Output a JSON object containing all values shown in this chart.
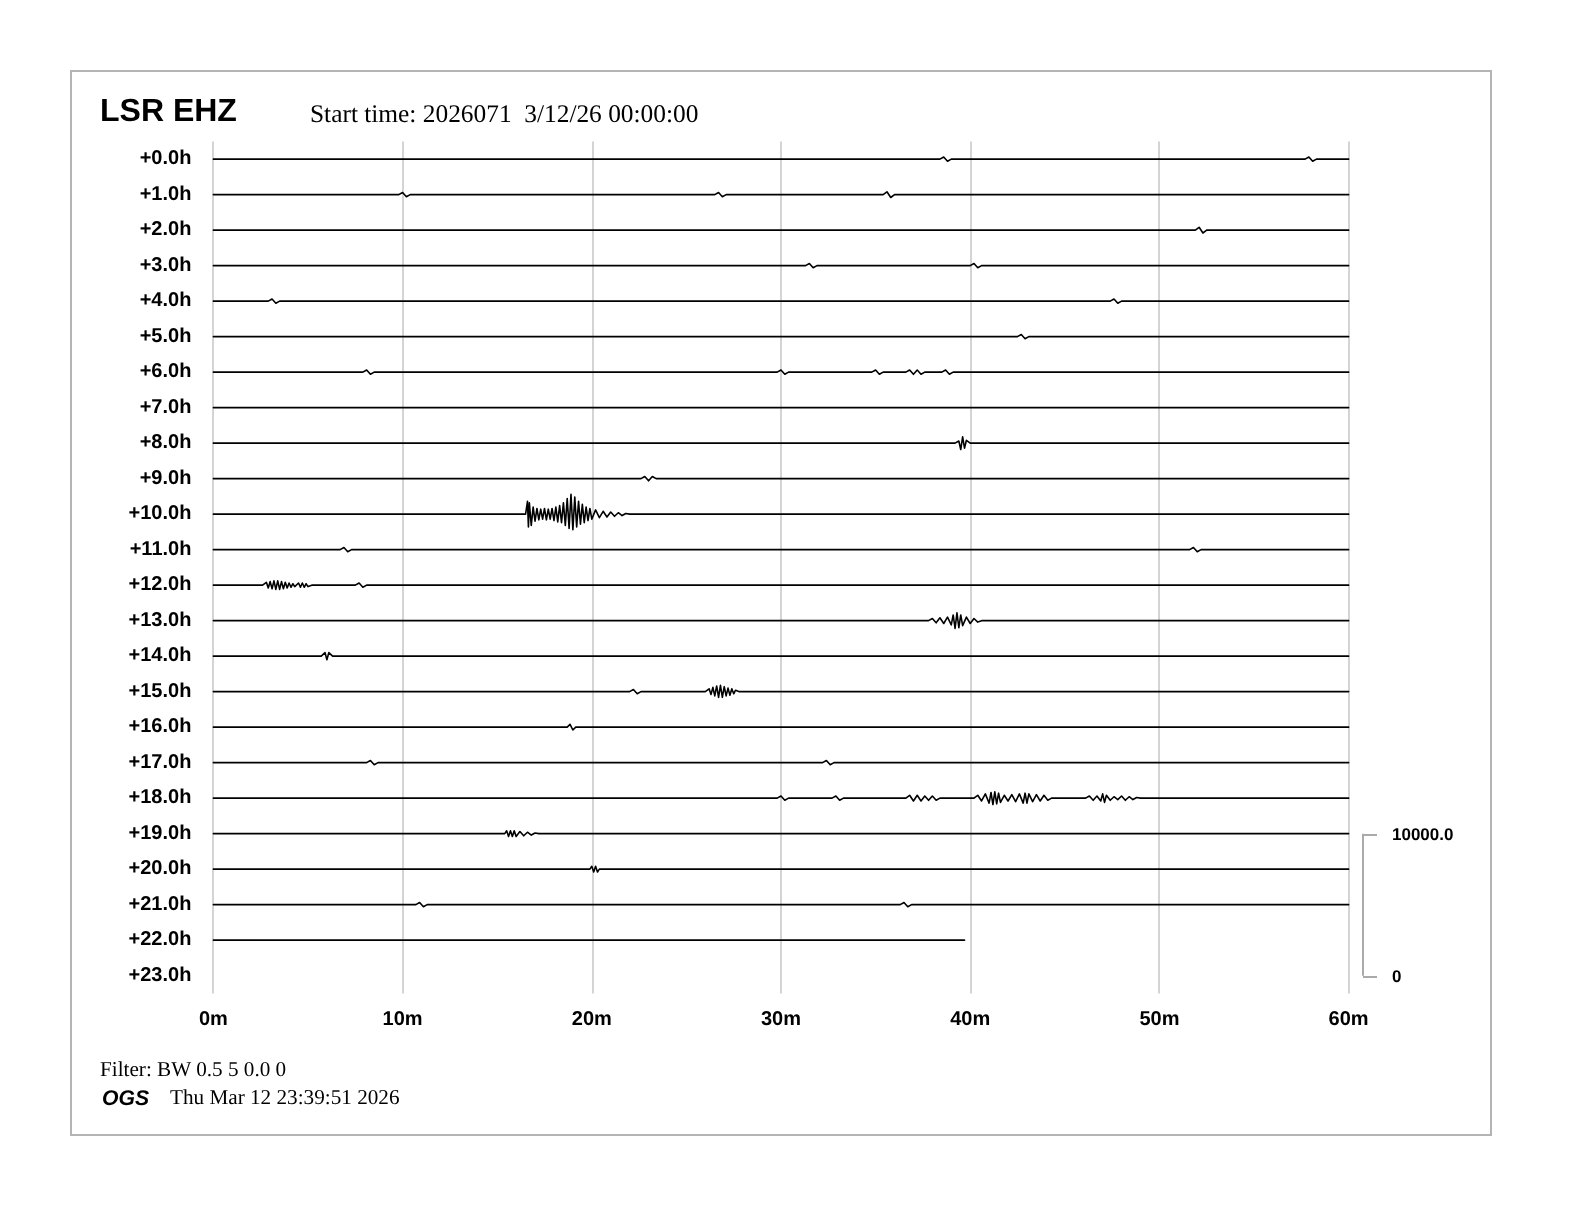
{
  "chart_data": {
    "type": "line",
    "title": "LSR EHZ",
    "subtitle": "Start time: 2026071  3/12/26 00:00:00",
    "annotations": [
      "Filter: BW 0.5 5 0.0 0",
      "OGS",
      "Thu Mar 12 23:39:51 2026"
    ],
    "xlim": [
      0,
      60
    ],
    "xticks": [
      {
        "value": 0,
        "label": "0m"
      },
      {
        "value": 10,
        "label": "10m"
      },
      {
        "value": 20,
        "label": "20m"
      },
      {
        "value": 30,
        "label": "30m"
      },
      {
        "value": 40,
        "label": "40m"
      },
      {
        "value": 50,
        "label": "50m"
      },
      {
        "value": 60,
        "label": "60m"
      }
    ],
    "ylim": [
      23.5,
      -0.5
    ],
    "yticks": [
      {
        "value": 0,
        "label": "+0.0h"
      },
      {
        "value": 1,
        "label": "+1.0h"
      },
      {
        "value": 2,
        "label": "+2.0h"
      },
      {
        "value": 3,
        "label": "+3.0h"
      },
      {
        "value": 4,
        "label": "+4.0h"
      },
      {
        "value": 5,
        "label": "+5.0h"
      },
      {
        "value": 6,
        "label": "+6.0h"
      },
      {
        "value": 7,
        "label": "+7.0h"
      },
      {
        "value": 8,
        "label": "+8.0h"
      },
      {
        "value": 9,
        "label": "+9.0h"
      },
      {
        "value": 10,
        "label": "+10.0h"
      },
      {
        "value": 11,
        "label": "+11.0h"
      },
      {
        "value": 12,
        "label": "+12.0h"
      },
      {
        "value": 13,
        "label": "+13.0h"
      },
      {
        "value": 14,
        "label": "+14.0h"
      },
      {
        "value": 15,
        "label": "+15.0h"
      },
      {
        "value": 16,
        "label": "+16.0h"
      },
      {
        "value": 17,
        "label": "+17.0h"
      },
      {
        "value": 18,
        "label": "+18.0h"
      },
      {
        "value": 19,
        "label": "+19.0h"
      },
      {
        "value": 20,
        "label": "+20.0h"
      },
      {
        "value": 21,
        "label": "+21.0h"
      },
      {
        "value": 22,
        "label": "+22.0h"
      },
      {
        "value": 23,
        "label": "+23.0h"
      }
    ],
    "y2lim": [
      -1250,
      58750
    ],
    "y2ticks": [
      0,
      {
        "value": 10000,
        "label": "10000.0"
      }
    ],
    "grid": "x",
    "marker": "none",
    "line_style": "solid",
    "series": [
      {
        "color": "#000000",
        "x": [
          0,
          38.4,
          38.6,
          38.8,
          39,
          57.7,
          57.9,
          58.1,
          58.3,
          60
        ],
        "values": [
          0,
          0,
          -0.06,
          0.06,
          0,
          0,
          -0.06,
          0.06,
          0,
          0
        ]
      },
      {
        "color": "#000000",
        "x": [
          0,
          9.8,
          10,
          10.2,
          10.4,
          26.5,
          26.7,
          26.9,
          27.1,
          35.4,
          35.6,
          35.8,
          36,
          60
        ],
        "values": [
          1,
          1,
          0.94,
          1.06,
          1,
          1,
          0.94,
          1.06,
          1,
          1,
          0.92,
          1.08,
          1,
          1
        ]
      },
      {
        "color": "#000000",
        "x": [
          0,
          51.9,
          52.1,
          52.3,
          52.5,
          60
        ],
        "values": [
          2,
          2,
          1.92,
          2.08,
          2,
          2
        ]
      },
      {
        "color": "#000000",
        "x": [
          0,
          31.3,
          31.5,
          31.7,
          31.9,
          40,
          40.2,
          40.4,
          40.6,
          60
        ],
        "values": [
          3,
          3,
          2.94,
          3.06,
          3,
          3,
          2.94,
          3.06,
          3,
          3
        ]
      },
      {
        "color": "#000000",
        "x": [
          0,
          2.9,
          3.1,
          3.3,
          3.5,
          47.4,
          47.6,
          47.8,
          48,
          60
        ],
        "values": [
          4,
          4,
          3.94,
          4.06,
          4,
          4,
          3.94,
          4.06,
          4,
          4
        ]
      },
      {
        "color": "#000000",
        "x": [
          0,
          42.5,
          42.7,
          42.9,
          43.1,
          60
        ],
        "values": [
          5,
          5,
          4.94,
          5.06,
          5,
          5
        ]
      },
      {
        "color": "#000000",
        "x": [
          0,
          7.9,
          8.1,
          8.3,
          8.5,
          29.8,
          30,
          30.2,
          30.4,
          34.8,
          35,
          35.2,
          35.4,
          36.6,
          36.8,
          37,
          37.2,
          37.4,
          37.6,
          38.5,
          38.7,
          38.9,
          39.1,
          60
        ],
        "values": [
          6,
          6,
          5.94,
          6.06,
          6,
          6,
          5.94,
          6.06,
          6,
          6,
          5.94,
          6.06,
          6,
          6,
          5.94,
          6.06,
          5.94,
          6.06,
          6,
          6,
          5.94,
          6.06,
          6,
          6
        ]
      },
      {
        "color": "#000000",
        "x": [
          0,
          60
        ],
        "values": [
          7,
          7
        ]
      },
      {
        "color": "#000000",
        "x": [
          0,
          39.2,
          39.4,
          39.5,
          39.6,
          39.7,
          39.8,
          40,
          60
        ],
        "values": [
          8,
          8,
          7.94,
          8.18,
          7.82,
          8.14,
          7.92,
          8,
          8
        ]
      },
      {
        "color": "#000000",
        "x": [
          0,
          22.6,
          22.8,
          23,
          23.2,
          23.4,
          60
        ],
        "values": [
          9,
          9,
          8.94,
          9.06,
          8.94,
          9,
          9
        ]
      },
      {
        "color": "#000000",
        "x": [
          0,
          16.5,
          16.6,
          16.65,
          16.7,
          16.8,
          16.9,
          17,
          17.1,
          17.2,
          17.3,
          17.4,
          17.5,
          17.6,
          17.7,
          17.8,
          17.9,
          18,
          18.1,
          18.2,
          18.3,
          18.4,
          18.5,
          18.6,
          18.7,
          18.8,
          18.9,
          19,
          19.1,
          19.2,
          19.3,
          19.4,
          19.5,
          19.6,
          19.7,
          19.8,
          19.9,
          20,
          20.2,
          20.4,
          20.6,
          20.8,
          21,
          21.2,
          21.4,
          21.6,
          21.8,
          22,
          60
        ],
        "values": [
          10,
          10,
          9.64,
          10.36,
          9.68,
          10.32,
          9.8,
          10.2,
          9.84,
          10.16,
          9.86,
          10.14,
          9.84,
          10.16,
          9.86,
          10.14,
          9.84,
          10.18,
          9.8,
          10.22,
          9.76,
          10.24,
          9.68,
          10.32,
          9.56,
          10.4,
          9.44,
          10.44,
          9.52,
          10.36,
          9.64,
          10.28,
          9.72,
          10.24,
          9.8,
          10.18,
          9.84,
          10.14,
          9.88,
          10.1,
          9.92,
          10.08,
          9.94,
          10.06,
          9.96,
          10.04,
          9.98,
          10,
          10
        ]
      },
      {
        "color": "#000000",
        "x": [
          0,
          6.7,
          6.9,
          7.1,
          7.3,
          51.6,
          51.8,
          52,
          52.2,
          60
        ],
        "values": [
          11,
          11,
          10.94,
          11.06,
          11,
          11,
          10.94,
          11.06,
          11,
          11
        ]
      },
      {
        "color": "#000000",
        "x": [
          0,
          2.6,
          2.8,
          2.9,
          3,
          3.1,
          3.2,
          3.3,
          3.4,
          3.5,
          3.6,
          3.7,
          3.8,
          3.9,
          4,
          4.1,
          4.2,
          4.3,
          4.5,
          4.6,
          4.7,
          4.8,
          4.9,
          5,
          5.2,
          7.5,
          7.7,
          7.9,
          8.1,
          60
        ],
        "values": [
          12,
          12,
          11.92,
          12.08,
          11.9,
          12.1,
          11.88,
          12.12,
          11.88,
          12.12,
          11.9,
          12.1,
          11.92,
          12.08,
          11.94,
          12.06,
          11.96,
          12.04,
          11.94,
          12.06,
          11.94,
          12.06,
          11.96,
          12.04,
          12,
          12,
          11.94,
          12.06,
          12,
          12
        ]
      },
      {
        "color": "#000000",
        "x": [
          0,
          37.8,
          38,
          38.2,
          38.4,
          38.6,
          38.8,
          39,
          39.1,
          39.2,
          39.3,
          39.4,
          39.5,
          39.6,
          39.8,
          40,
          40.2,
          40.4,
          40.6,
          60
        ],
        "values": [
          13,
          13,
          12.94,
          13.06,
          12.92,
          13.08,
          12.9,
          13.12,
          12.84,
          13.22,
          12.78,
          13.2,
          12.84,
          13.14,
          12.9,
          13.08,
          12.94,
          13.04,
          13,
          13
        ]
      },
      {
        "color": "#000000",
        "x": [
          0,
          5.7,
          5.9,
          6,
          6.1,
          6.3,
          60
        ],
        "values": [
          14,
          14,
          13.9,
          14.1,
          13.9,
          14,
          14
        ]
      },
      {
        "color": "#000000",
        "x": [
          0,
          22,
          22.2,
          22.4,
          22.6,
          26,
          26.2,
          26.3,
          26.4,
          26.5,
          26.6,
          26.7,
          26.8,
          26.9,
          27,
          27.1,
          27.2,
          27.3,
          27.4,
          27.5,
          27.6,
          27.8,
          60
        ],
        "values": [
          15,
          15,
          14.94,
          15.06,
          15,
          15,
          14.92,
          15.08,
          14.88,
          15.12,
          14.84,
          15.16,
          14.82,
          15.16,
          14.86,
          15.12,
          14.9,
          15.1,
          14.92,
          15.06,
          14.96,
          15,
          15
        ]
      },
      {
        "color": "#000000",
        "x": [
          0,
          18.7,
          18.85,
          19,
          19.15,
          60
        ],
        "values": [
          16,
          16,
          15.92,
          16.08,
          16,
          16
        ]
      },
      {
        "color": "#000000",
        "x": [
          0,
          8.1,
          8.3,
          8.5,
          8.7,
          32.2,
          32.4,
          32.6,
          32.8,
          60
        ],
        "values": [
          17,
          17,
          16.94,
          17.06,
          17,
          17,
          16.94,
          17.06,
          17,
          17
        ]
      },
      {
        "color": "#000000",
        "x": [
          0,
          29.8,
          30,
          30.2,
          30.4,
          32.7,
          32.9,
          33.1,
          33.3,
          36.6,
          36.8,
          37,
          37.2,
          37.4,
          37.6,
          37.8,
          38,
          38.2,
          38.4,
          40.2,
          40.4,
          40.6,
          40.8,
          41,
          41.1,
          41.2,
          41.3,
          41.4,
          41.5,
          41.6,
          41.8,
          42,
          42.2,
          42.4,
          42.6,
          42.8,
          42.9,
          43,
          43.1,
          43.3,
          43.5,
          43.7,
          43.9,
          44.1,
          44.3,
          46.1,
          46.3,
          46.5,
          46.7,
          46.9,
          47,
          47.1,
          47.2,
          47.4,
          47.6,
          47.8,
          48,
          48.2,
          48.4,
          48.6,
          48.8,
          49,
          60
        ],
        "values": [
          18,
          18,
          17.94,
          18.06,
          18,
          18,
          17.94,
          18.06,
          18,
          18,
          17.92,
          18.08,
          17.92,
          18.08,
          17.94,
          18.06,
          17.94,
          18.06,
          18,
          18,
          17.92,
          18.08,
          17.88,
          18.14,
          17.84,
          18.18,
          17.82,
          18.16,
          17.86,
          18.12,
          17.92,
          18.08,
          17.9,
          18.1,
          17.88,
          18.14,
          17.86,
          18.14,
          17.88,
          18.1,
          17.9,
          18.08,
          17.92,
          18.06,
          18,
          18,
          17.94,
          18.06,
          17.94,
          18.08,
          17.88,
          18.12,
          17.92,
          18.06,
          17.96,
          18.04,
          17.94,
          18.06,
          17.96,
          18.04,
          17.98,
          18,
          18
        ]
      },
      {
        "color": "#000000",
        "x": [
          0,
          15.4,
          15.5,
          15.6,
          15.7,
          15.8,
          15.9,
          16,
          16.2,
          16.4,
          16.6,
          16.8,
          17,
          17.2,
          60
        ],
        "values": [
          19,
          19,
          18.92,
          19.08,
          18.92,
          19.08,
          18.92,
          19.08,
          18.94,
          19.06,
          18.96,
          19.04,
          18.98,
          19,
          19
        ]
      },
      {
        "color": "#000000",
        "x": [
          0,
          19.9,
          20,
          20.1,
          20.2,
          20.3,
          20.4,
          60
        ],
        "values": [
          20,
          20,
          19.92,
          20.08,
          19.92,
          20.08,
          20,
          20
        ]
      },
      {
        "color": "#000000",
        "x": [
          0,
          10.7,
          10.9,
          11.1,
          11.3,
          36.3,
          36.5,
          36.7,
          36.9,
          60
        ],
        "values": [
          21,
          21,
          20.94,
          21.06,
          21,
          21,
          20.94,
          21.06,
          21,
          21
        ]
      },
      {
        "color": "#000000",
        "x": [
          0,
          39.7
        ],
        "values": [
          22,
          22
        ]
      }
    ]
  }
}
